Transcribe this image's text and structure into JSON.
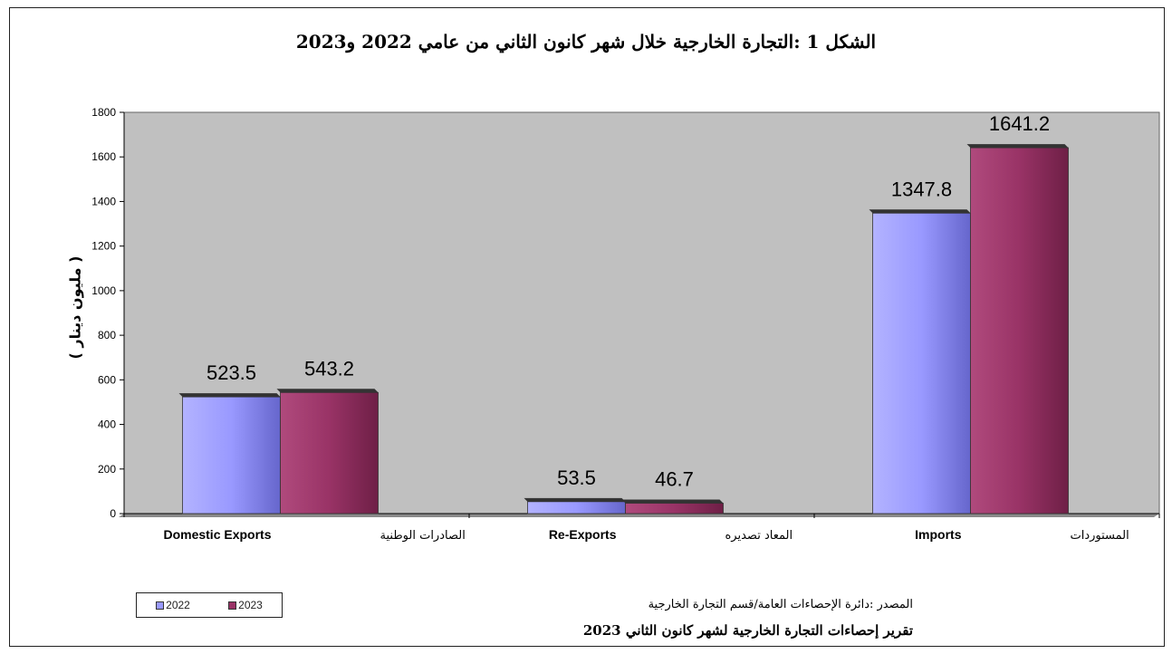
{
  "page": {
    "title": "الشكل 1 :التجارة الخارجية خلال شهر كانون الثاني من عامي 2022 و2023",
    "source_line1": "المصدر :دائرة الإحصاءات العامة/قسم التجارة الخارجية",
    "source_line2": "تقرير إحصاءات التجارة الخارجية لشهر كانون الثاني 2023"
  },
  "chart_data": {
    "type": "bar",
    "title": "الشكل 1 :التجارة الخارجية خلال شهر كانون الثاني من عامي 2022 و2023",
    "ylabel": "( مليون دينار )",
    "xlabel": "",
    "ylim": [
      0,
      1800
    ],
    "yticks": [
      0,
      200,
      400,
      600,
      800,
      1000,
      1200,
      1400,
      1600,
      1800
    ],
    "categories": [
      {
        "en": "Domestic Exports",
        "ar": "الصادرات الوطنية"
      },
      {
        "en": "Re-Exports",
        "ar": "المعاد تصديره"
      },
      {
        "en": "Imports",
        "ar": "المستوردات"
      }
    ],
    "series": [
      {
        "name": "2022",
        "color": "#9999ff",
        "values": [
          523.5,
          53.5,
          1347.8
        ],
        "labels": [
          "523.5",
          "53.5",
          "1347.8"
        ]
      },
      {
        "name": "2023",
        "color": "#993366",
        "values": [
          543.2,
          46.7,
          1641.2
        ],
        "labels": [
          "543.2",
          "46.7",
          "1641.2"
        ]
      }
    ],
    "grid": false,
    "legend_position": "bottom-left",
    "plot_background": "#c0c0c0"
  }
}
